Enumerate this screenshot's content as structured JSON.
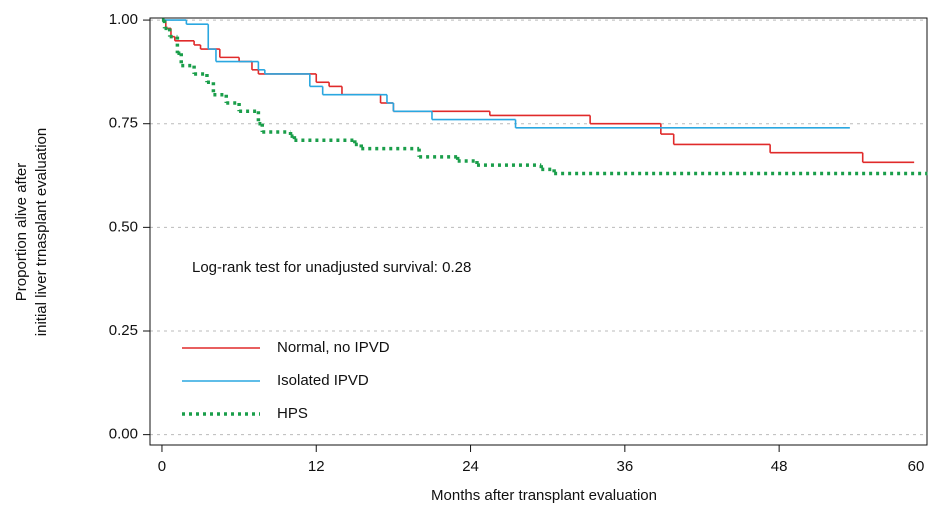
{
  "chart_data": {
    "type": "step",
    "xlabel": "Months after transplant evaluation",
    "ylabel": [
      "Proportion alive after",
      "initial liver trnasplant evaluation"
    ],
    "annotation": "Log-rank test for unadjusted survival: 0.28",
    "xlim": [
      -0.93,
      59.5
    ],
    "ylim": [
      -0.025,
      1.005
    ],
    "xticks": [
      0,
      12,
      24,
      36,
      48,
      60
    ],
    "yticks": [
      {
        "value": 0,
        "label": "0.00"
      },
      {
        "value": 0.25,
        "label": "0.25"
      },
      {
        "value": 0.5,
        "label": "0.50"
      },
      {
        "value": 0.75,
        "label": "0.75"
      },
      {
        "value": 1,
        "label": "1.00"
      }
    ],
    "grid": true,
    "legend": "lower left",
    "series": [
      {
        "name": "Normal, no IPVD",
        "color": "#e02a2a",
        "style": "solid",
        "x": [
          0,
          0.3,
          0.7,
          1,
          2.5,
          3,
          4.5,
          6,
          7,
          7.5,
          12,
          13,
          14,
          17,
          18,
          25.5,
          33.3,
          38.8,
          39.8,
          47.3,
          54.5,
          58.5
        ],
        "values": [
          1,
          0.98,
          0.96,
          0.95,
          0.94,
          0.93,
          0.91,
          0.9,
          0.88,
          0.87,
          0.85,
          0.84,
          0.82,
          0.8,
          0.78,
          0.77,
          0.75,
          0.725,
          0.7,
          0.68,
          0.657,
          0.657
        ]
      },
      {
        "name": "Isolated IPVD",
        "color": "#2aa7e0",
        "style": "solid",
        "x": [
          0,
          1.9,
          3.6,
          4.2,
          7.5,
          8,
          11.5,
          12.5,
          17.5,
          18,
          21,
          27.5,
          53.5
        ],
        "values": [
          1,
          0.99,
          0.93,
          0.9,
          0.88,
          0.87,
          0.84,
          0.82,
          0.8,
          0.78,
          0.76,
          0.74,
          0.74
        ]
      },
      {
        "name": "HPS",
        "color": "#1a9e4a",
        "style": "dotted",
        "x": [
          0,
          0.2,
          0.6,
          1.2,
          1.5,
          2.5,
          3.5,
          4,
          5,
          6,
          7.5,
          7.8,
          10,
          10.3,
          15,
          15.5,
          20,
          23,
          24.5,
          29.5,
          30.5,
          59.5
        ],
        "values": [
          1,
          0.98,
          0.96,
          0.92,
          0.89,
          0.87,
          0.85,
          0.82,
          0.8,
          0.78,
          0.75,
          0.73,
          0.72,
          0.71,
          0.7,
          0.69,
          0.67,
          0.66,
          0.65,
          0.64,
          0.63,
          0.63
        ]
      }
    ]
  }
}
